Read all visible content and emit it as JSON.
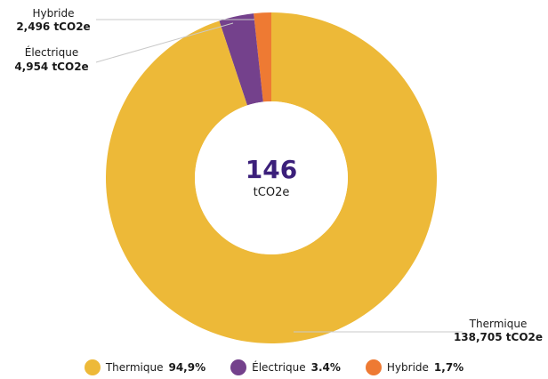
{
  "chart_data": {
    "type": "pie",
    "donut": true,
    "center": {
      "value": "146",
      "unit": "tCO2e"
    },
    "slices": [
      {
        "name": "Thermique",
        "value": 138.705,
        "value_label": "138,705 tCO2e",
        "percent_label": "94,9%",
        "color": "#EDB938"
      },
      {
        "name": "Électrique",
        "value": 4.954,
        "value_label": "4,954 tCO2e",
        "percent_label": "3.4%",
        "color": "#74418C"
      },
      {
        "name": "Hybride",
        "value": 2.496,
        "value_label": "2,496 tCO2e",
        "percent_label": "1,7%",
        "color": "#EE7A33"
      }
    ],
    "legend_position": "bottom"
  }
}
